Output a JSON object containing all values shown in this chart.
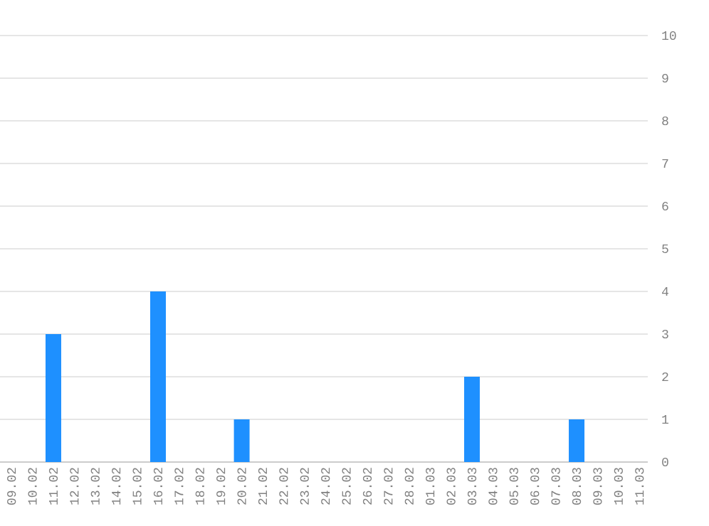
{
  "chart_data": {
    "type": "bar",
    "categories": [
      "09.02",
      "10.02",
      "11.02",
      "12.02",
      "13.02",
      "14.02",
      "15.02",
      "16.02",
      "17.02",
      "18.02",
      "19.02",
      "20.02",
      "21.02",
      "22.02",
      "23.02",
      "24.02",
      "25.02",
      "26.02",
      "27.02",
      "28.02",
      "01.03",
      "02.03",
      "03.03",
      "04.03",
      "05.03",
      "06.03",
      "07.03",
      "08.03",
      "09.03",
      "10.03",
      "11.03"
    ],
    "values": [
      0,
      0,
      3,
      0,
      0,
      0,
      0,
      4,
      0,
      0,
      0,
      1,
      0,
      0,
      0,
      0,
      0,
      0,
      0,
      0,
      0,
      0,
      2,
      0,
      0,
      0,
      0,
      1,
      0,
      0,
      0
    ],
    "color": "#1e90ff",
    "ylim": [
      0,
      10
    ],
    "yticks": [
      0,
      1,
      2,
      3,
      4,
      5,
      6,
      7,
      8,
      9,
      10
    ],
    "grid": "y"
  }
}
